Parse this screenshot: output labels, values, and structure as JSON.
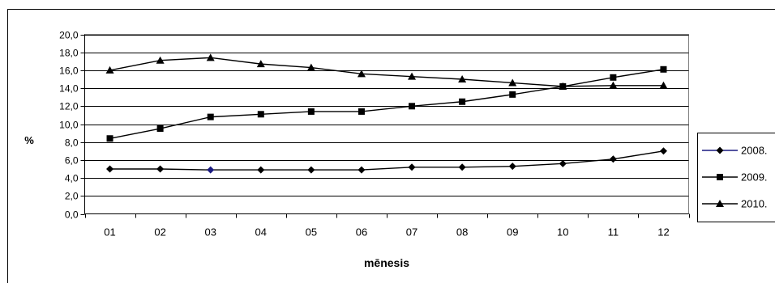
{
  "chart_data": {
    "type": "line",
    "title": "",
    "xlabel": "mēnesis",
    "ylabel": "%",
    "categories": [
      "01",
      "02",
      "03",
      "04",
      "05",
      "06",
      "07",
      "08",
      "09",
      "10",
      "11",
      "12"
    ],
    "ylim": [
      0,
      20
    ],
    "y_ticks": [
      "0,0",
      "2,0",
      "4,0",
      "6,0",
      "8,0",
      "10,0",
      "12,0",
      "14,0",
      "16,0",
      "18,0",
      "20,0"
    ],
    "grid": "horizontal",
    "legend_position": "right",
    "series": [
      {
        "name": "2008.",
        "marker": "diamond",
        "color": "#000000",
        "values": [
          5.0,
          5.0,
          4.9,
          4.9,
          4.9,
          4.9,
          5.2,
          5.2,
          5.3,
          5.6,
          6.1,
          7.0
        ]
      },
      {
        "name": "2009.",
        "marker": "square",
        "color": "#000000",
        "values": [
          8.4,
          9.5,
          10.8,
          11.1,
          11.4,
          11.4,
          12.0,
          12.5,
          13.3,
          14.2,
          15.2,
          16.1
        ]
      },
      {
        "name": "2010.",
        "marker": "triangle",
        "color": "#000000",
        "values": [
          16.0,
          17.1,
          17.4,
          16.7,
          16.3,
          15.6,
          15.3,
          15.0,
          14.6,
          14.2,
          14.3,
          14.3
        ]
      }
    ]
  }
}
